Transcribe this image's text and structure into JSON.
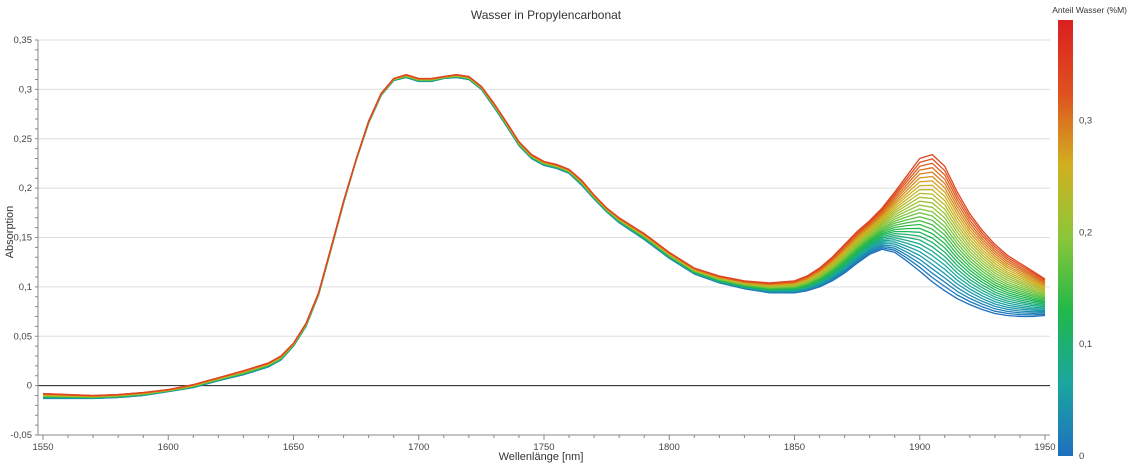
{
  "chart_data": {
    "type": "line",
    "title": "Wasser in Propylencarbonat",
    "xlabel": "Wellenlänge [nm]",
    "ylabel": "Absorption",
    "xlim": [
      1548,
      1952
    ],
    "ylim": [
      -0.05,
      0.35
    ],
    "xticks": [
      1550,
      1600,
      1650,
      1700,
      1750,
      1800,
      1850,
      1900,
      1950
    ],
    "yticks": [
      -0.05,
      0,
      0.05,
      0.1,
      0.15,
      0.2,
      0.25,
      0.3,
      0.35
    ],
    "ytick_labels": [
      "-0,05",
      "0",
      "0,05",
      "0,1",
      "0,15",
      "0,2",
      "0,25",
      "0,3",
      "0,35"
    ],
    "grid": true,
    "zero_line": true,
    "colorbar": {
      "title": "Anteil Wasser (%M)",
      "range": [
        0,
        0.39
      ],
      "ticks": [
        0,
        0.1,
        0.2,
        0.3
      ],
      "tick_labels": [
        "0",
        "0,1",
        "0,2",
        "0,3"
      ],
      "colors": [
        "#1f6fbf",
        "#1aa6a0",
        "#21b84a",
        "#8cc63a",
        "#d1b020",
        "#e05020",
        "#d92020"
      ]
    },
    "series_count": 30,
    "series_parameter_range": [
      0.0,
      0.34
    ],
    "x": [
      1550,
      1560,
      1570,
      1580,
      1590,
      1600,
      1610,
      1620,
      1630,
      1640,
      1645,
      1650,
      1655,
      1660,
      1665,
      1670,
      1675,
      1680,
      1685,
      1690,
      1695,
      1700,
      1705,
      1710,
      1715,
      1720,
      1725,
      1730,
      1735,
      1740,
      1745,
      1750,
      1755,
      1760,
      1765,
      1770,
      1775,
      1780,
      1790,
      1800,
      1810,
      1820,
      1830,
      1840,
      1850,
      1855,
      1860,
      1865,
      1870,
      1875,
      1880,
      1885,
      1890,
      1895,
      1900,
      1905,
      1910,
      1915,
      1920,
      1925,
      1930,
      1935,
      1940,
      1945,
      1950
    ],
    "lowest_water_series": [
      -0.013,
      -0.013,
      -0.013,
      -0.012,
      -0.01,
      -0.006,
      -0.002,
      0.005,
      0.011,
      0.019,
      0.026,
      0.04,
      0.06,
      0.092,
      0.138,
      0.185,
      0.228,
      0.266,
      0.294,
      0.309,
      0.312,
      0.308,
      0.308,
      0.311,
      0.312,
      0.31,
      0.3,
      0.282,
      0.263,
      0.243,
      0.23,
      0.223,
      0.22,
      0.215,
      0.203,
      0.189,
      0.176,
      0.165,
      0.148,
      0.129,
      0.113,
      0.104,
      0.098,
      0.094,
      0.094,
      0.096,
      0.1,
      0.106,
      0.114,
      0.124,
      0.133,
      0.138,
      0.135,
      0.126,
      0.116,
      0.105,
      0.096,
      0.088,
      0.082,
      0.077,
      0.073,
      0.071,
      0.07,
      0.07,
      0.071
    ],
    "highest_water_series": [
      -0.008,
      -0.009,
      -0.01,
      -0.009,
      -0.007,
      -0.004,
      0.001,
      0.008,
      0.015,
      0.023,
      0.03,
      0.043,
      0.063,
      0.094,
      0.14,
      0.187,
      0.229,
      0.268,
      0.296,
      0.311,
      0.315,
      0.311,
      0.311,
      0.313,
      0.315,
      0.313,
      0.303,
      0.286,
      0.267,
      0.247,
      0.234,
      0.227,
      0.224,
      0.219,
      0.208,
      0.193,
      0.18,
      0.17,
      0.154,
      0.135,
      0.119,
      0.111,
      0.106,
      0.104,
      0.106,
      0.111,
      0.119,
      0.13,
      0.143,
      0.156,
      0.167,
      0.18,
      0.196,
      0.213,
      0.23,
      0.234,
      0.222,
      0.196,
      0.174,
      0.157,
      0.143,
      0.132,
      0.124,
      0.116,
      0.108
    ]
  }
}
